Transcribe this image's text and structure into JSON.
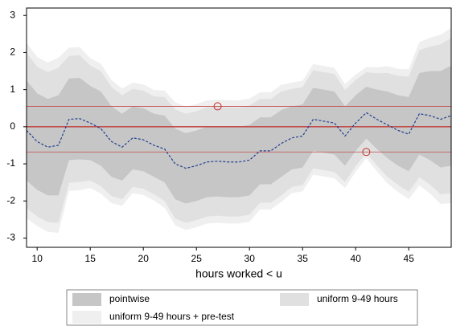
{
  "chart_data": {
    "type": "band",
    "x_label": "hours worked < u",
    "x": [
      9,
      10,
      11,
      12,
      13,
      14,
      15,
      16,
      17,
      18,
      19,
      20,
      21,
      22,
      23,
      24,
      25,
      26,
      27,
      28,
      29,
      30,
      31,
      32,
      33,
      34,
      35,
      36,
      37,
      38,
      39,
      40,
      41,
      42,
      43,
      44,
      45,
      46,
      47,
      48,
      49
    ],
    "bands": [
      {
        "name": "uniform 9-49 hours + pre-test",
        "color": "#efefef",
        "lower": [
          -2.46,
          -2.68,
          -2.83,
          -2.86,
          -1.73,
          -1.71,
          -1.65,
          -1.8,
          -2.06,
          -2.13,
          -1.79,
          -1.84,
          -1.99,
          -2.18,
          -2.66,
          -2.78,
          -2.71,
          -2.61,
          -2.59,
          -2.61,
          -2.61,
          -2.56,
          -2.23,
          -2.23,
          -2.03,
          -1.79,
          -1.74,
          -1.29,
          -1.34,
          -1.39,
          -1.65,
          -1.21,
          -0.85,
          -1.2,
          -1.53,
          -1.76,
          -1.95,
          -1.58,
          -1.8,
          -2.08,
          -2.06
        ],
        "upper": [
          2.26,
          1.88,
          1.73,
          1.86,
          2.13,
          2.15,
          1.85,
          1.7,
          1.26,
          1.03,
          1.19,
          1.14,
          0.99,
          0.98,
          0.66,
          0.54,
          0.61,
          0.71,
          0.73,
          0.71,
          0.71,
          0.76,
          0.93,
          0.93,
          1.13,
          1.19,
          1.24,
          1.69,
          1.64,
          1.59,
          1.15,
          1.41,
          1.61,
          1.6,
          1.63,
          1.56,
          1.55,
          2.28,
          2.4,
          2.48,
          2.66
        ]
      },
      {
        "name": "uniform 9-49 hours",
        "color": "#e0e0e0",
        "lower": [
          -2.19,
          -2.42,
          -2.57,
          -2.59,
          -1.51,
          -1.49,
          -1.45,
          -1.6,
          -1.87,
          -1.95,
          -1.62,
          -1.67,
          -1.82,
          -2.0,
          -2.47,
          -2.59,
          -2.52,
          -2.42,
          -2.4,
          -2.42,
          -2.42,
          -2.37,
          -2.05,
          -2.05,
          -1.85,
          -1.62,
          -1.57,
          -1.12,
          -1.17,
          -1.22,
          -1.49,
          -1.06,
          -0.71,
          -1.04,
          -1.35,
          -1.57,
          -1.75,
          -1.36,
          -1.56,
          -1.82,
          -1.79
        ],
        "upper": [
          1.99,
          1.62,
          1.47,
          1.59,
          1.91,
          1.93,
          1.65,
          1.5,
          1.07,
          0.85,
          1.02,
          0.97,
          0.82,
          0.8,
          0.47,
          0.35,
          0.42,
          0.52,
          0.54,
          0.52,
          0.52,
          0.57,
          0.75,
          0.75,
          0.95,
          1.02,
          1.07,
          1.52,
          1.47,
          1.42,
          0.99,
          1.26,
          1.47,
          1.44,
          1.45,
          1.37,
          1.35,
          2.06,
          2.16,
          2.22,
          2.39
        ]
      },
      {
        "name": "pointwise",
        "color": "#c6c6c6",
        "lower": [
          -1.45,
          -1.7,
          -1.85,
          -1.85,
          -0.9,
          -0.88,
          -0.9,
          -1.05,
          -1.35,
          -1.45,
          -1.15,
          -1.2,
          -1.35,
          -1.5,
          -1.95,
          -2.07,
          -2.0,
          -1.9,
          -1.88,
          -1.9,
          -1.9,
          -1.85,
          -1.55,
          -1.55,
          -1.35,
          -1.15,
          -1.1,
          -0.65,
          -0.7,
          -0.75,
          -1.05,
          -0.65,
          -0.32,
          -0.6,
          -0.85,
          -1.05,
          -1.2,
          -0.75,
          -0.9,
          -1.1,
          -1.05
        ],
        "upper": [
          1.25,
          0.9,
          0.75,
          0.85,
          1.3,
          1.32,
          1.1,
          0.95,
          0.55,
          0.35,
          0.55,
          0.5,
          0.35,
          0.3,
          -0.05,
          -0.17,
          -0.1,
          0.0,
          0.02,
          0.0,
          0.0,
          0.05,
          0.25,
          0.25,
          0.45,
          0.55,
          0.6,
          1.05,
          1.0,
          0.95,
          0.55,
          0.85,
          1.08,
          1.0,
          0.95,
          0.85,
          0.8,
          1.45,
          1.5,
          1.5,
          1.65
        ]
      }
    ],
    "estimate": {
      "color": "#1f3f8f",
      "values": [
        -0.1,
        -0.4,
        -0.55,
        -0.5,
        0.2,
        0.22,
        0.1,
        -0.05,
        -0.4,
        -0.55,
        -0.3,
        -0.35,
        -0.5,
        -0.6,
        -1.0,
        -1.12,
        -1.05,
        -0.95,
        -0.93,
        -0.95,
        -0.95,
        -0.9,
        -0.65,
        -0.65,
        -0.45,
        -0.3,
        -0.25,
        0.2,
        0.15,
        0.1,
        -0.25,
        0.1,
        0.38,
        0.2,
        0.05,
        -0.1,
        -0.2,
        0.35,
        0.3,
        0.2,
        0.3
      ]
    },
    "reference_lines": [
      0.55,
      0,
      -0.68
    ],
    "reference_color": "#c0504d",
    "markers": {
      "x": [
        27,
        41
      ],
      "y": [
        0.55,
        -0.68
      ],
      "color": "#c0302b"
    },
    "xlim": [
      9,
      49
    ],
    "ylim": [
      -3.25,
      3.2
    ],
    "xticks": [
      10,
      15,
      20,
      25,
      30,
      35,
      40,
      45
    ],
    "yticks": [
      -3,
      -2,
      -1,
      0,
      1,
      2,
      3
    ]
  }
}
